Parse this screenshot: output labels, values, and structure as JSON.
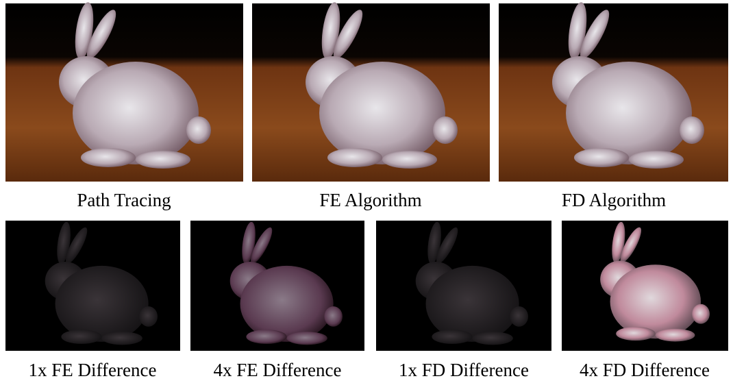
{
  "figure": {
    "top_row": [
      {
        "caption": "Path Tracing"
      },
      {
        "caption": "FE Algorithm"
      },
      {
        "caption": "FD Algorithm"
      }
    ],
    "bottom_row": [
      {
        "caption": "1x FE Difference"
      },
      {
        "caption": "4x FE Difference"
      },
      {
        "caption": "1x FD Difference"
      },
      {
        "caption": "4x FD Difference"
      }
    ]
  }
}
